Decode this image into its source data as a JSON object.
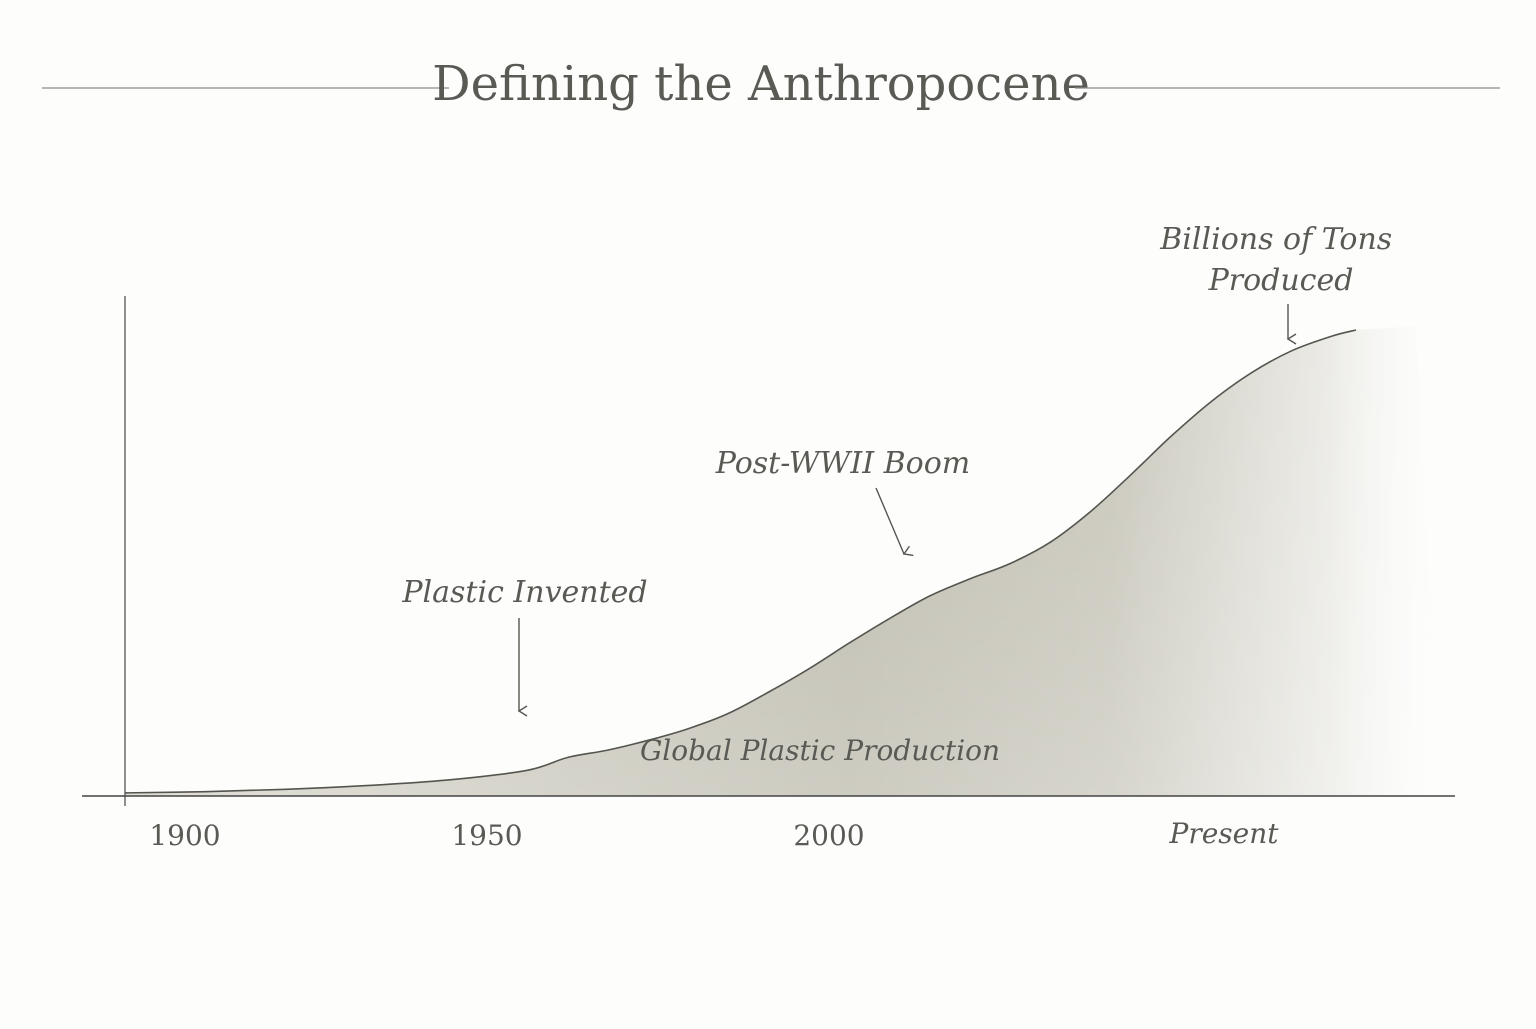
{
  "title": "Defining the Anthropocene",
  "chart_data": {
    "type": "area",
    "series": [
      {
        "name": "Global Plastic Production",
        "points": [
          {
            "x": "1900",
            "y": 0.05
          },
          {
            "x": "1910",
            "y": 0.07
          },
          {
            "x": "1920",
            "y": 0.11
          },
          {
            "x": "1930",
            "y": 0.17
          },
          {
            "x": "1940",
            "y": 0.26
          },
          {
            "x": "1950",
            "y": 0.42
          },
          {
            "x": "1955",
            "y": 0.63
          },
          {
            "x": "1960",
            "y": 0.75
          },
          {
            "x": "1965",
            "y": 0.91
          },
          {
            "x": "1970",
            "y": 1.1
          },
          {
            "x": "1975",
            "y": 1.35
          },
          {
            "x": "1980",
            "y": 1.7
          },
          {
            "x": "1985",
            "y": 2.08
          },
          {
            "x": "1990",
            "y": 2.5
          },
          {
            "x": "1995",
            "y": 2.9
          },
          {
            "x": "2000",
            "y": 3.27
          },
          {
            "x": "2005",
            "y": 3.55
          },
          {
            "x": "2010",
            "y": 3.8
          },
          {
            "x": "2015",
            "y": 4.15
          },
          {
            "x": "2020",
            "y": 4.65
          },
          {
            "x": "2025",
            "y": 5.25
          },
          {
            "x": "2030",
            "y": 5.88
          },
          {
            "x": "2035",
            "y": 6.45
          },
          {
            "x": "2040",
            "y": 6.92
          },
          {
            "x": "2045",
            "y": 7.28
          },
          {
            "x": "2050",
            "y": 7.52
          },
          {
            "x": "2053",
            "y": 7.62
          }
        ]
      }
    ],
    "x_tick_labels": [
      "1900",
      "1950",
      "2000",
      "Present"
    ],
    "y_tick_count": 5,
    "annotations": [
      {
        "text": "Plastic Invented",
        "x": "1955"
      },
      {
        "text": "Post-WWII Boom",
        "x": "2006"
      },
      {
        "text": "Billions of Tons Produced",
        "x": "2043"
      }
    ],
    "area_label": "Global Plastic Production",
    "grid": false,
    "legend": "none",
    "colors": {
      "fill": "#b9b7a8",
      "fill_light": "#f3f2ec",
      "line": "#55554f",
      "text": "#5a5a55",
      "axis": "#444444"
    }
  }
}
